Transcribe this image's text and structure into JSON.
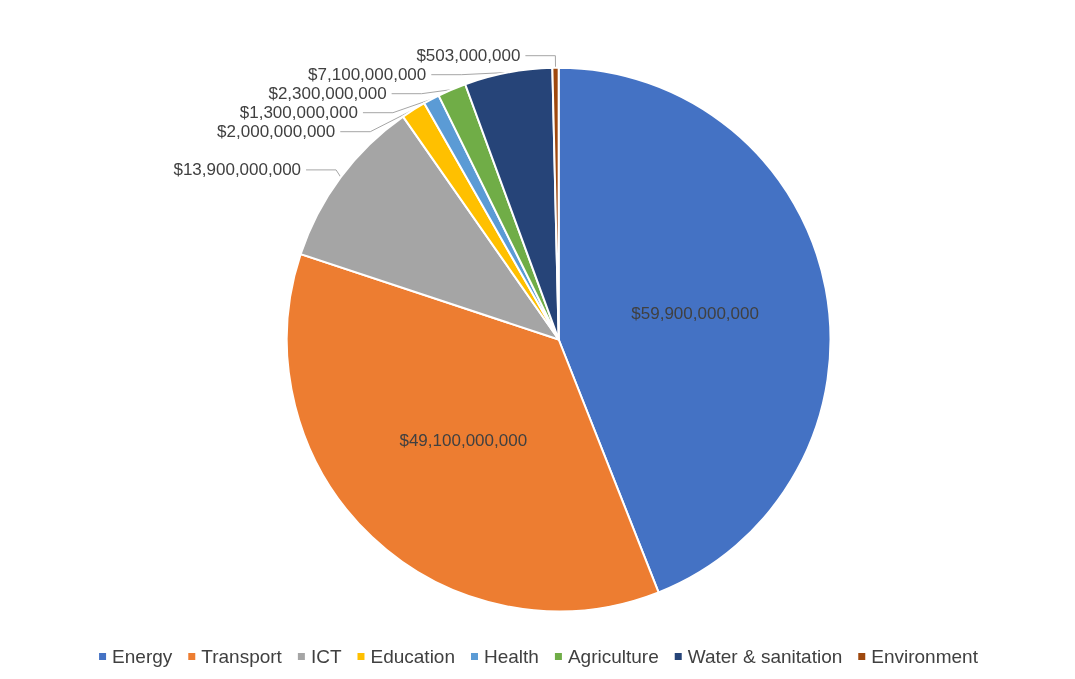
{
  "chart_data": {
    "type": "pie",
    "categories": [
      "Energy",
      "Transport",
      "ICT",
      "Education",
      "Health",
      "Agriculture",
      "Water & sanitation",
      "Environment"
    ],
    "values": [
      59900000000,
      49100000000,
      13900000000,
      2000000000,
      1300000000,
      2300000000,
      7100000000,
      503000000
    ],
    "colors": [
      "#4472c4",
      "#ed7d31",
      "#a5a5a5",
      "#ffc000",
      "#5b9bd5",
      "#70ad47",
      "#264478",
      "#9e480e"
    ],
    "value_labels": [
      "$59,900,000,000",
      "$49,100,000,000",
      "$13,900,000,000",
      "$2,000,000,000",
      "$1,300,000,000",
      "$2,300,000,000",
      "$7,100,000,000",
      "$503,000,000"
    ],
    "legend": "bottom"
  }
}
